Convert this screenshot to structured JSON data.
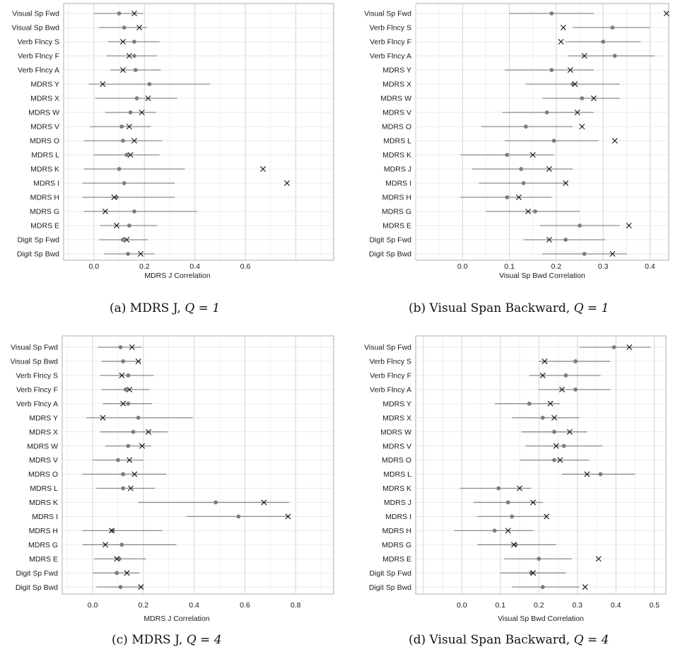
{
  "chart_data": [
    {
      "type": "scatter",
      "xlabel": "MDRS J Correlation",
      "caption_text": "(a) MDRS J,",
      "caption_q": "Q = 1",
      "xlim": [
        -0.12,
        0.95
      ],
      "xticks": [
        0.0,
        0.2,
        0.4,
        0.6
      ],
      "xtick_labels": [
        "0.0",
        "0.2",
        "0.4",
        "0.6"
      ],
      "grid": true,
      "series": [
        {
          "marker": "circle",
          "values": [
            0.1,
            0.12,
            0.16,
            0.16,
            0.165,
            0.22,
            0.17,
            0.145,
            0.11,
            0.115,
            0.13,
            0.1,
            0.12,
            0.09,
            0.16,
            0.14,
            0.115,
            0.135
          ]
        },
        {
          "marker": "x",
          "values": [
            0.16,
            0.18,
            0.115,
            0.14,
            0.115,
            0.035,
            0.215,
            0.19,
            0.14,
            0.16,
            0.145,
            0.67,
            0.765,
            0.08,
            0.045,
            0.09,
            0.13,
            0.185
          ]
        }
      ],
      "rows": [
        {
          "label": "Visual Sp Fwd",
          "lo": 0.0,
          "hi": 0.195
        },
        {
          "label": "Visual Sp Bwd",
          "lo": 0.02,
          "hi": 0.21
        },
        {
          "label": "Verb Flncy S",
          "lo": 0.055,
          "hi": 0.26
        },
        {
          "label": "Verb Flncy F",
          "lo": 0.05,
          "hi": 0.25
        },
        {
          "label": "Verb Flncy A",
          "lo": 0.065,
          "hi": 0.265
        },
        {
          "label": "MDRS Y",
          "lo": -0.02,
          "hi": 0.46
        },
        {
          "label": "MDRS X",
          "lo": 0.005,
          "hi": 0.33
        },
        {
          "label": "MDRS W",
          "lo": 0.045,
          "hi": 0.245
        },
        {
          "label": "MDRS V",
          "lo": -0.015,
          "hi": 0.225
        },
        {
          "label": "MDRS O",
          "lo": -0.04,
          "hi": 0.27
        },
        {
          "label": "MDRS L",
          "lo": 0.0,
          "hi": 0.26
        },
        {
          "label": "MDRS K",
          "lo": -0.04,
          "hi": 0.36
        },
        {
          "label": "MDRS I",
          "lo": -0.045,
          "hi": 0.32
        },
        {
          "label": "MDRS H",
          "lo": -0.045,
          "hi": 0.32
        },
        {
          "label": "MDRS G",
          "lo": -0.04,
          "hi": 0.41
        },
        {
          "label": "MDRS E",
          "lo": 0.025,
          "hi": 0.25
        },
        {
          "label": "Digit Sp Fwd",
          "lo": 0.02,
          "hi": 0.215
        },
        {
          "label": "Digit Sp Bwd",
          "lo": 0.04,
          "hi": 0.24
        }
      ]
    },
    {
      "type": "scatter",
      "xlabel": "Visual Sp Bwd Correlation",
      "caption_text": "(b) Visual Span Backward,",
      "caption_q": "Q = 1",
      "xlim": [
        -0.1,
        0.44
      ],
      "xticks": [
        0.0,
        0.1,
        0.2,
        0.3,
        0.4
      ],
      "xtick_labels": [
        "0.0",
        "0.1",
        "0.2",
        "0.3",
        "0.4"
      ],
      "grid": true,
      "series": [
        {
          "marker": "circle",
          "values": [
            0.19,
            0.32,
            0.3,
            0.325,
            0.19,
            0.235,
            0.255,
            0.18,
            0.135,
            0.195,
            0.095,
            0.125,
            0.13,
            0.095,
            0.155,
            0.25,
            0.22,
            0.26
          ]
        },
        {
          "marker": "x",
          "values": [
            0.435,
            0.215,
            0.21,
            0.26,
            0.23,
            0.24,
            0.28,
            0.245,
            0.255,
            0.325,
            0.15,
            0.185,
            0.22,
            0.12,
            0.14,
            0.355,
            0.185,
            0.32
          ]
        }
      ],
      "rows": [
        {
          "label": "Visual Sp Fwd",
          "lo": 0.1,
          "hi": 0.28
        },
        {
          "label": "Verb Flncy S",
          "lo": 0.235,
          "hi": 0.4
        },
        {
          "label": "Verb Flncy F",
          "lo": 0.22,
          "hi": 0.38
        },
        {
          "label": "Verb Flncy A",
          "lo": 0.225,
          "hi": 0.41
        },
        {
          "label": "MDRS Y",
          "lo": 0.09,
          "hi": 0.28
        },
        {
          "label": "MDRS X",
          "lo": 0.135,
          "hi": 0.335
        },
        {
          "label": "MDRS W",
          "lo": 0.17,
          "hi": 0.335
        },
        {
          "label": "MDRS V",
          "lo": 0.085,
          "hi": 0.28
        },
        {
          "label": "MDRS O",
          "lo": 0.04,
          "hi": 0.235
        },
        {
          "label": "MDRS L",
          "lo": 0.09,
          "hi": 0.29
        },
        {
          "label": "MDRS K",
          "lo": -0.005,
          "hi": 0.195
        },
        {
          "label": "MDRS J",
          "lo": 0.02,
          "hi": 0.235
        },
        {
          "label": "MDRS I",
          "lo": 0.035,
          "hi": 0.225
        },
        {
          "label": "MDRS H",
          "lo": -0.005,
          "hi": 0.19
        },
        {
          "label": "MDRS G",
          "lo": 0.05,
          "hi": 0.25
        },
        {
          "label": "MDRS E",
          "lo": 0.165,
          "hi": 0.335
        },
        {
          "label": "Digit Sp Fwd",
          "lo": 0.13,
          "hi": 0.305
        },
        {
          "label": "Digit Sp Bwd",
          "lo": 0.17,
          "hi": 0.35
        }
      ]
    },
    {
      "type": "scatter",
      "xlabel": "MDRS J Correlation",
      "caption_text": "(c) MDRS J,",
      "caption_q": "Q = 4",
      "xlim": [
        -0.12,
        0.95
      ],
      "xticks": [
        0.0,
        0.2,
        0.4,
        0.6,
        0.8
      ],
      "xtick_labels": [
        "0.0",
        "0.2",
        "0.4",
        "0.6",
        "0.8"
      ],
      "grid": true,
      "series": [
        {
          "marker": "circle",
          "values": [
            0.11,
            0.12,
            0.14,
            0.13,
            0.14,
            0.18,
            0.16,
            0.14,
            0.1,
            0.12,
            0.12,
            0.485,
            0.575,
            0.08,
            0.115,
            0.105,
            0.095,
            0.11
          ]
        },
        {
          "marker": "x",
          "values": [
            0.155,
            0.18,
            0.115,
            0.145,
            0.12,
            0.04,
            0.22,
            0.195,
            0.145,
            0.165,
            0.15,
            0.675,
            0.77,
            0.075,
            0.05,
            0.095,
            0.135,
            0.19
          ]
        }
      ],
      "rows": [
        {
          "label": "Visual Sp Fwd",
          "lo": 0.02,
          "hi": 0.195
        },
        {
          "label": "Visual Sp Bwd",
          "lo": 0.035,
          "hi": 0.19
        },
        {
          "label": "Verb Flncy S",
          "lo": 0.03,
          "hi": 0.24
        },
        {
          "label": "Verb Flncy F",
          "lo": 0.035,
          "hi": 0.225
        },
        {
          "label": "Verb Flncy A",
          "lo": 0.04,
          "hi": 0.235
        },
        {
          "label": "MDRS Y",
          "lo": -0.025,
          "hi": 0.395
        },
        {
          "label": "MDRS X",
          "lo": 0.03,
          "hi": 0.295
        },
        {
          "label": "MDRS W",
          "lo": 0.05,
          "hi": 0.23
        },
        {
          "label": "MDRS V",
          "lo": 0.0,
          "hi": 0.2
        },
        {
          "label": "MDRS O",
          "lo": -0.04,
          "hi": 0.29
        },
        {
          "label": "MDRS L",
          "lo": 0.015,
          "hi": 0.245
        },
        {
          "label": "MDRS K",
          "lo": 0.18,
          "hi": 0.775
        },
        {
          "label": "MDRS I",
          "lo": 0.37,
          "hi": 0.775
        },
        {
          "label": "MDRS H",
          "lo": -0.04,
          "hi": 0.275
        },
        {
          "label": "MDRS G",
          "lo": -0.04,
          "hi": 0.33
        },
        {
          "label": "MDRS E",
          "lo": 0.005,
          "hi": 0.21
        },
        {
          "label": "Digit Sp Fwd",
          "lo": 0.0,
          "hi": 0.185
        },
        {
          "label": "Digit Sp Bwd",
          "lo": 0.015,
          "hi": 0.2
        }
      ]
    },
    {
      "type": "scatter",
      "xlabel": "Visual Sp Bwd Correlation",
      "caption_text": "(d) Visual Span Backward,",
      "caption_q": "Q = 4",
      "xlim": [
        -0.12,
        0.53
      ],
      "xticks": [
        0.0,
        0.1,
        0.2,
        0.3,
        0.4,
        0.5
      ],
      "xtick_labels": [
        "0.0",
        "0.1",
        "0.2",
        "0.3",
        "0.4",
        "0.5"
      ],
      "grid": true,
      "series": [
        {
          "marker": "circle",
          "values": [
            0.395,
            0.295,
            0.27,
            0.295,
            0.175,
            0.21,
            0.24,
            0.265,
            0.24,
            0.36,
            0.095,
            0.12,
            0.13,
            0.085,
            0.14,
            0.2,
            0.18,
            0.21
          ]
        },
        {
          "marker": "x",
          "values": [
            0.435,
            0.215,
            0.21,
            0.26,
            0.23,
            0.24,
            0.28,
            0.245,
            0.255,
            0.325,
            0.15,
            0.185,
            0.22,
            0.12,
            0.135,
            0.355,
            0.185,
            0.32
          ]
        }
      ],
      "rows": [
        {
          "label": "Visual Sp Fwd",
          "lo": 0.305,
          "hi": 0.49
        },
        {
          "label": "Verb Flncy S",
          "lo": 0.2,
          "hi": 0.385
        },
        {
          "label": "Verb Flncy F",
          "lo": 0.175,
          "hi": 0.36
        },
        {
          "label": "Verb Flncy A",
          "lo": 0.2,
          "hi": 0.385
        },
        {
          "label": "MDRS Y",
          "lo": 0.085,
          "hi": 0.255
        },
        {
          "label": "MDRS X",
          "lo": 0.13,
          "hi": 0.305
        },
        {
          "label": "MDRS W",
          "lo": 0.155,
          "hi": 0.325
        },
        {
          "label": "MDRS V",
          "lo": 0.165,
          "hi": 0.365
        },
        {
          "label": "MDRS O",
          "lo": 0.15,
          "hi": 0.33
        },
        {
          "label": "MDRS L",
          "lo": 0.26,
          "hi": 0.45
        },
        {
          "label": "MDRS K",
          "lo": -0.005,
          "hi": 0.18
        },
        {
          "label": "MDRS J",
          "lo": 0.03,
          "hi": 0.21
        },
        {
          "label": "MDRS I",
          "lo": 0.04,
          "hi": 0.22
        },
        {
          "label": "MDRS H",
          "lo": -0.02,
          "hi": 0.185
        },
        {
          "label": "MDRS G",
          "lo": 0.04,
          "hi": 0.245
        },
        {
          "label": "MDRS E",
          "lo": 0.11,
          "hi": 0.285
        },
        {
          "label": "Digit Sp Fwd",
          "lo": 0.1,
          "hi": 0.27
        },
        {
          "label": "Digit Sp Bwd",
          "lo": 0.13,
          "hi": 0.305
        }
      ]
    }
  ]
}
